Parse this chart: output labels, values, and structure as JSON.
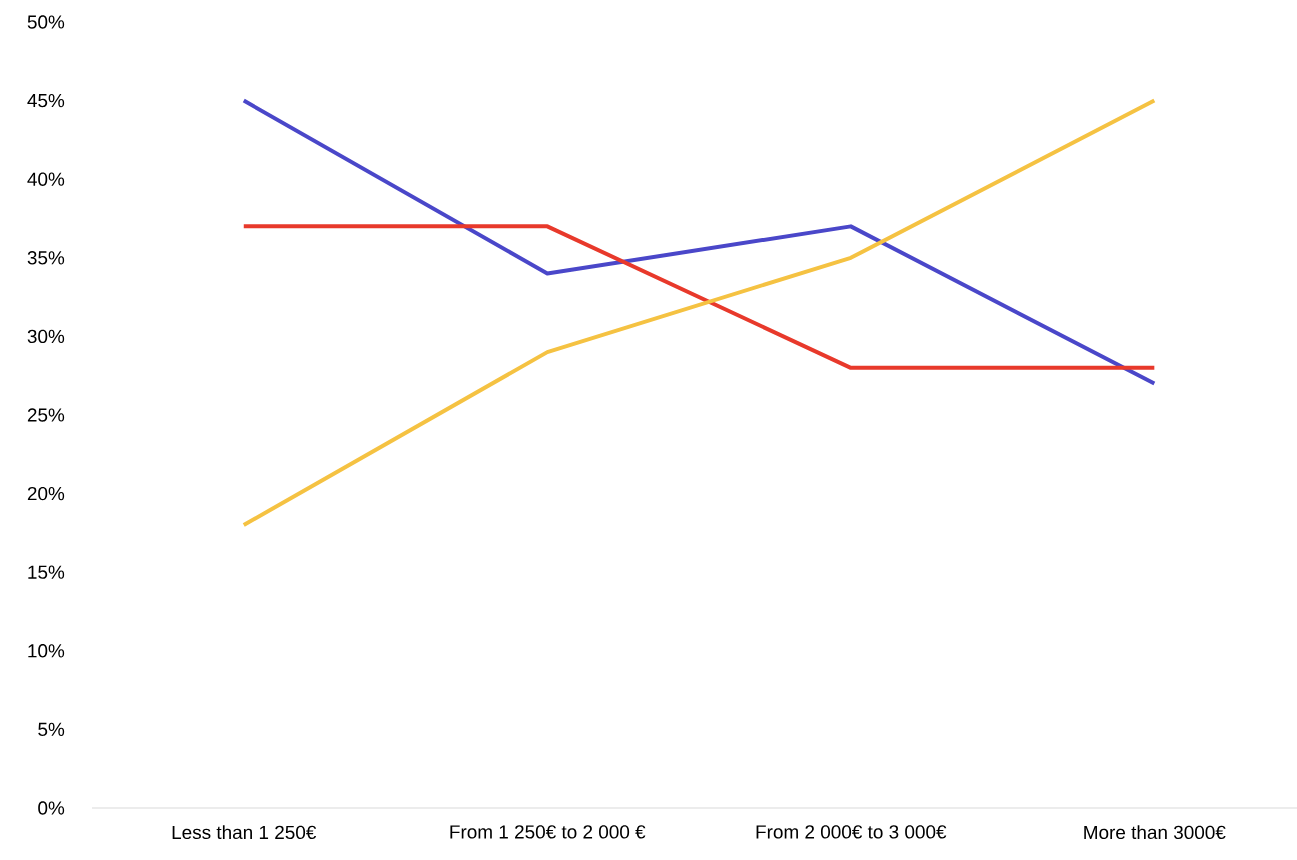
{
  "chart_data": {
    "type": "line",
    "categories": [
      "Less than 1 250€",
      "From 1 250€ to 2 000 €",
      "From 2 000€ to 3 000€",
      "More than 3000€"
    ],
    "series": [
      {
        "color": "#4a47c9",
        "values": [
          45,
          34,
          37,
          27
        ]
      },
      {
        "color": "#e8392b",
        "values": [
          37,
          37,
          28,
          28
        ]
      },
      {
        "color": "#f5c242",
        "values": [
          18,
          29,
          35,
          45
        ]
      }
    ],
    "ylim": [
      0,
      50
    ],
    "yticks": [
      {
        "value": 0,
        "label": "0%"
      },
      {
        "value": 5,
        "label": "5%"
      },
      {
        "value": 10,
        "label": "10%"
      },
      {
        "value": 15,
        "label": "15%"
      },
      {
        "value": 20,
        "label": "20%"
      },
      {
        "value": 25,
        "label": "25%"
      },
      {
        "value": 30,
        "label": "30%"
      },
      {
        "value": 35,
        "label": "35%"
      },
      {
        "value": 40,
        "label": "40%"
      },
      {
        "value": 45,
        "label": "45%"
      },
      {
        "value": 50,
        "label": "50%"
      }
    ],
    "grid": false
  }
}
